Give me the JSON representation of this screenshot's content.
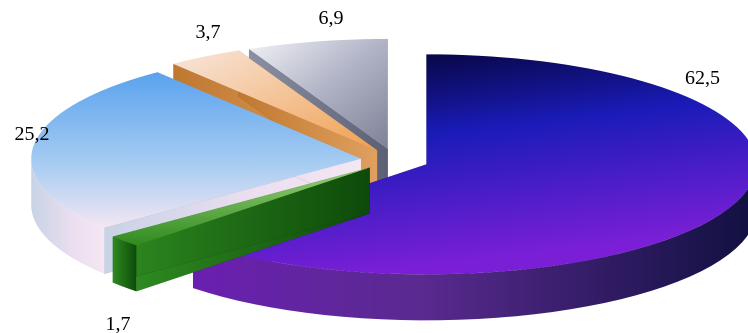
{
  "chart_data": {
    "type": "pie",
    "style": "3d-exploded",
    "slices": [
      {
        "label": "62,5",
        "value": 62.5,
        "color": "#2a1fc4"
      },
      {
        "label": "1,7",
        "value": 1.7,
        "color": "#2f8a1e"
      },
      {
        "label": "25,2",
        "value": 25.2,
        "color": "#6aa8ec"
      },
      {
        "label": "3,7",
        "value": 3.7,
        "color": "#f0b070"
      },
      {
        "label": "6,9",
        "value": 6.9,
        "color": "#a9acbf"
      }
    ],
    "legend": "none",
    "grid": false
  }
}
